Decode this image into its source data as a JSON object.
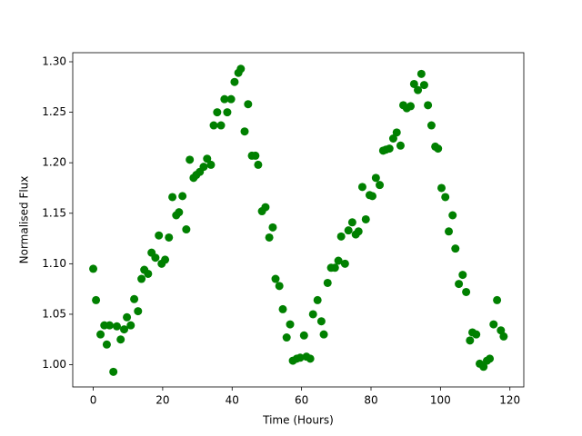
{
  "chart_data": {
    "type": "scatter",
    "xlabel": "Time (Hours)",
    "ylabel": "Normalised Flux",
    "color": "#008000",
    "xlim": [
      -5.9,
      124
    ],
    "ylim": [
      0.978,
      1.309
    ],
    "xticks": [
      0,
      20,
      40,
      60,
      80,
      100,
      120
    ],
    "yticks": [
      {
        "value": 1.0,
        "label": "1.00"
      },
      1.05,
      {
        "value": 1.1,
        "label": "1.10"
      },
      1.15,
      {
        "value": 1.2,
        "label": "1.20"
      },
      1.25,
      {
        "value": 1.3,
        "label": "1.30"
      }
    ],
    "x": [
      0,
      0.8,
      2.1,
      3.2,
      3.9,
      4.7,
      5.8,
      6.8,
      7.9,
      8.9,
      9.7,
      10.8,
      11.8,
      12.9,
      13.9,
      14.7,
      15.8,
      16.8,
      17.9,
      18.9,
      19.7,
      20.7,
      21.8,
      22.8,
      23.9,
      24.7,
      25.7,
      26.8,
      27.8,
      28.9,
      29.7,
      30.7,
      31.8,
      32.8,
      33.9,
      34.7,
      35.7,
      36.8,
      37.8,
      38.6,
      39.7,
      40.7,
      41.8,
      42.5,
      43.6,
      44.6,
      45.7,
      46.7,
      47.5,
      48.6,
      49.6,
      50.7,
      51.7,
      52.5,
      53.6,
      54.6,
      55.7,
      56.7,
      57.5,
      58.6,
      59.6,
      60.7,
      61.4,
      62.5,
      63.3,
      64.6,
      65.7,
      66.4,
      67.5,
      68.5,
      69.6,
      70.6,
      71.4,
      72.5,
      73.5,
      74.6,
      75.6,
      76.4,
      77.5,
      78.5,
      79.6,
      80.4,
      81.4,
      82.5,
      83.5,
      84.3,
      85.3,
      86.4,
      87.4,
      88.5,
      89.3,
      90.3,
      91.4,
      92.4,
      93.5,
      94.5,
      95.3,
      96.4,
      97.4,
      98.5,
      99.3,
      100.3,
      101.4,
      102.4,
      103.5,
      104.3,
      105.3,
      106.4,
      107.4,
      108.5,
      109.2,
      110.3,
      111.3,
      112.4,
      113.4,
      114.2,
      115.3,
      116.3,
      117.4,
      118.2
    ],
    "values": [
      1.095,
      1.064,
      1.03,
      1.039,
      1.02,
      1.039,
      0.993,
      1.038,
      1.025,
      1.035,
      1.047,
      1.039,
      1.065,
      1.053,
      1.085,
      1.094,
      1.09,
      1.111,
      1.106,
      1.128,
      1.1,
      1.104,
      1.126,
      1.166,
      1.148,
      1.151,
      1.167,
      1.134,
      1.203,
      1.185,
      1.188,
      1.191,
      1.196,
      1.204,
      1.198,
      1.237,
      1.25,
      1.237,
      1.263,
      1.25,
      1.263,
      1.28,
      1.289,
      1.293,
      1.231,
      1.258,
      1.207,
      1.207,
      1.198,
      1.152,
      1.156,
      1.126,
      1.136,
      1.085,
      1.078,
      1.055,
      1.027,
      1.04,
      1.004,
      1.006,
      1.007,
      1.029,
      1.008,
      1.006,
      1.05,
      1.064,
      1.043,
      1.03,
      1.081,
      1.096,
      1.096,
      1.103,
      1.127,
      1.1,
      1.133,
      1.141,
      1.129,
      1.132,
      1.176,
      1.144,
      1.168,
      1.167,
      1.185,
      1.178,
      1.212,
      1.213,
      1.214,
      1.224,
      1.23,
      1.217,
      1.257,
      1.254,
      1.256,
      1.278,
      1.272,
      1.288,
      1.277,
      1.257,
      1.237,
      1.216,
      1.214,
      1.175,
      1.166,
      1.132,
      1.148,
      1.115,
      1.08,
      1.089,
      1.072,
      1.024,
      1.032,
      1.03,
      1.001,
      0.998,
      1.004,
      1.006,
      1.04,
      1.064,
      1.034,
      1.028
    ]
  }
}
